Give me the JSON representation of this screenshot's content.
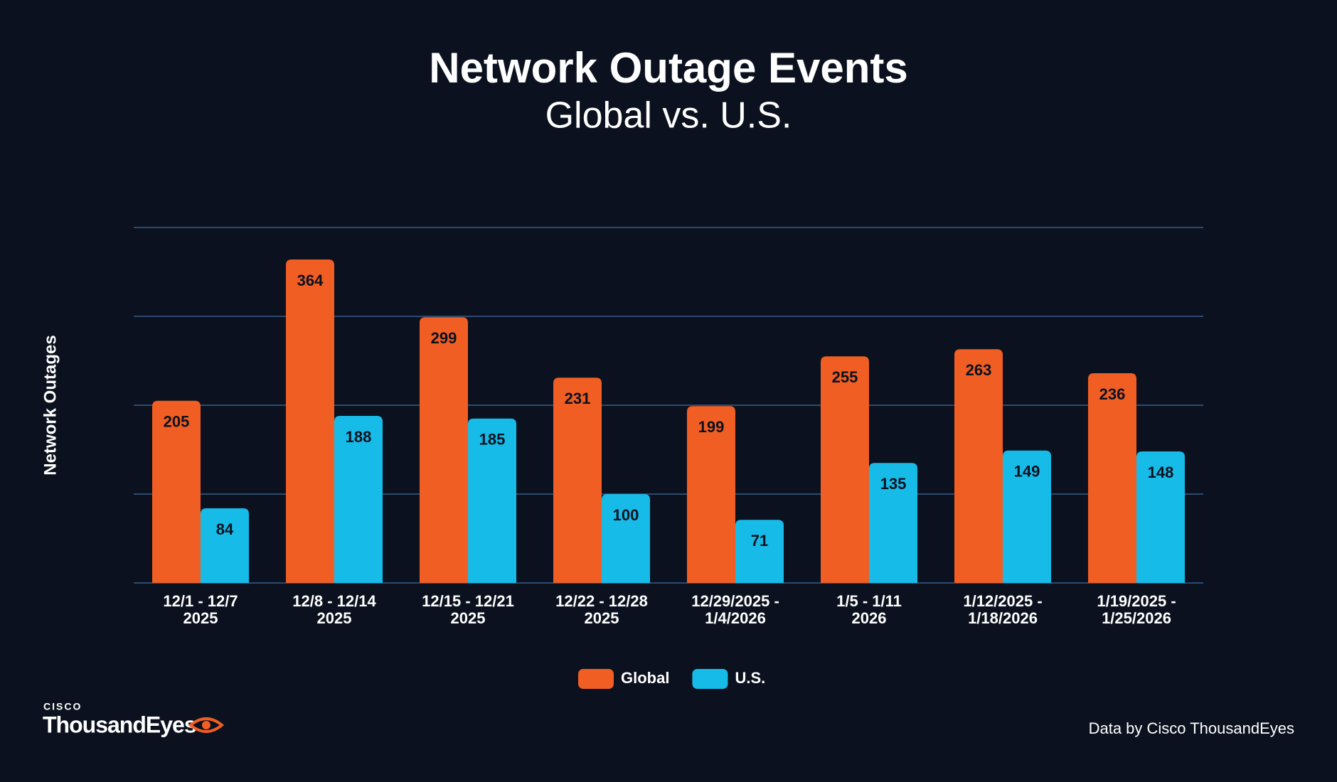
{
  "chart_data": {
    "type": "bar",
    "title": "Network Outage Events",
    "subtitle": "Global vs. U.S.",
    "y_label": "Network Outages",
    "categories": [
      [
        "12/1 - 12/7",
        "2025"
      ],
      [
        "12/8 - 12/14",
        "2025"
      ],
      [
        "12/15 - 12/21",
        "2025"
      ],
      [
        "12/22 - 12/28",
        "2025"
      ],
      [
        "12/29/2025 -",
        "1/4/2026"
      ],
      [
        "1/5 - 1/11",
        "2026"
      ],
      [
        "1/12/2025 -",
        "1/18/2026"
      ],
      [
        "1/19/2025 -",
        "1/25/2026"
      ]
    ],
    "series": [
      {
        "name": "Global",
        "color": "#f05e23",
        "values": [
          205,
          364,
          299,
          231,
          199,
          255,
          263,
          236
        ]
      },
      {
        "name": "U.S.",
        "color": "#17bbe8",
        "values": [
          84,
          188,
          185,
          100,
          71,
          135,
          149,
          148
        ]
      }
    ],
    "ylim": [
      0,
      400
    ],
    "yticks": [
      0,
      100,
      200,
      300,
      400
    ],
    "grid": true
  },
  "branding": {
    "brand": "CISCO",
    "product": "ThousandEyes",
    "source": "Data by Cisco ThousandEyes"
  }
}
